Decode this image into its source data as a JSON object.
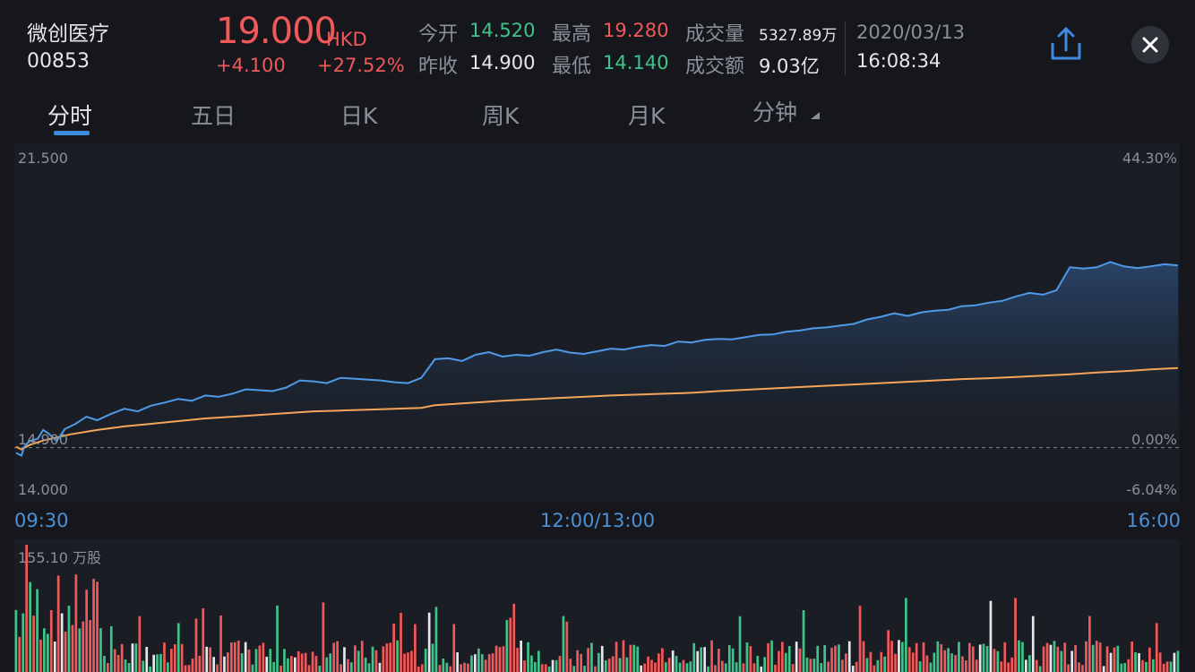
{
  "stock": {
    "name": "微创医疗",
    "code": "00853",
    "price": "19.000",
    "currency": "HKD",
    "change": "+4.100",
    "change_pct": "+27.52%"
  },
  "quote": {
    "open_label": "今开",
    "open": "14.520",
    "prev_close_label": "昨收",
    "prev_close": "14.900",
    "high_label": "最高",
    "high": "19.280",
    "low_label": "最低",
    "low": "14.140",
    "volume_label": "成交量",
    "volume": "5327.89万",
    "turnover_label": "成交额",
    "turnover": "9.03亿"
  },
  "datetime": {
    "date": "2020/03/13",
    "time": "16:08:34"
  },
  "icons": {
    "share": "share-icon",
    "close": "close-icon"
  },
  "tabs": [
    {
      "label": "分时",
      "active": true
    },
    {
      "label": "五日",
      "active": false
    },
    {
      "label": "日K",
      "active": false
    },
    {
      "label": "周K",
      "active": false
    },
    {
      "label": "月K",
      "active": false
    },
    {
      "label": "分钟",
      "active": false,
      "has_dropdown": true
    }
  ],
  "colors": {
    "up": "#f0585a",
    "down": "#3ec48a",
    "price_line": "#4e9ae8",
    "avg_line": "#f5a55a",
    "background": "#15171c"
  },
  "chart_axis": {
    "y_top": "21.500",
    "y_mid": "14.900",
    "y_bottom": "14.000",
    "pct_top": "44.30%",
    "pct_mid": "0.00%",
    "pct_bottom": "-6.04%",
    "time_start": "09:30",
    "time_mid": "12:00/13:00",
    "time_end": "16:00"
  },
  "volume_axis": {
    "max_label": "155.10 万股"
  },
  "chart_data": {
    "type": "line",
    "ylim": [
      14.0,
      21.5
    ],
    "baseline": 14.9,
    "x_range": [
      "09:30",
      "16:00"
    ],
    "series": [],
    "price_points": [
      [
        0,
        14.78
      ],
      [
        2,
        14.72
      ],
      [
        3,
        14.92
      ],
      [
        5,
        15.05
      ],
      [
        8,
        15.1
      ],
      [
        10,
        15.3
      ],
      [
        12,
        15.22
      ],
      [
        15,
        15.05
      ],
      [
        18,
        15.32
      ],
      [
        22,
        15.44
      ],
      [
        26,
        15.6
      ],
      [
        30,
        15.52
      ],
      [
        35,
        15.66
      ],
      [
        40,
        15.78
      ],
      [
        45,
        15.72
      ],
      [
        50,
        15.85
      ],
      [
        55,
        15.92
      ],
      [
        60,
        16.0
      ],
      [
        65,
        15.96
      ],
      [
        70,
        16.08
      ],
      [
        75,
        16.05
      ],
      [
        80,
        16.12
      ],
      [
        85,
        16.22
      ],
      [
        90,
        16.2
      ],
      [
        95,
        16.18
      ],
      [
        100,
        16.26
      ],
      [
        105,
        16.42
      ],
      [
        110,
        16.4
      ],
      [
        115,
        16.36
      ],
      [
        120,
        16.48
      ],
      [
        125,
        16.46
      ],
      [
        130,
        16.44
      ],
      [
        135,
        16.42
      ],
      [
        140,
        16.38
      ],
      [
        145,
        16.36
      ],
      [
        150,
        16.48
      ],
      [
        155,
        16.9
      ],
      [
        160,
        16.92
      ],
      [
        165,
        16.86
      ],
      [
        170,
        17.0
      ],
      [
        175,
        17.06
      ],
      [
        180,
        16.96
      ],
      [
        185,
        17.0
      ],
      [
        190,
        16.98
      ],
      [
        195,
        17.06
      ],
      [
        200,
        17.12
      ],
      [
        205,
        17.05
      ],
      [
        210,
        17.02
      ],
      [
        215,
        17.08
      ],
      [
        220,
        17.14
      ],
      [
        225,
        17.12
      ],
      [
        230,
        17.18
      ],
      [
        235,
        17.22
      ],
      [
        240,
        17.2
      ],
      [
        245,
        17.3
      ],
      [
        250,
        17.28
      ],
      [
        255,
        17.34
      ],
      [
        260,
        17.36
      ],
      [
        265,
        17.35
      ],
      [
        270,
        17.4
      ],
      [
        275,
        17.45
      ],
      [
        280,
        17.46
      ],
      [
        285,
        17.52
      ],
      [
        290,
        17.55
      ],
      [
        295,
        17.6
      ],
      [
        300,
        17.62
      ],
      [
        305,
        17.66
      ],
      [
        310,
        17.7
      ],
      [
        315,
        17.8
      ],
      [
        320,
        17.86
      ],
      [
        325,
        17.94
      ],
      [
        330,
        17.88
      ],
      [
        335,
        17.96
      ],
      [
        340,
        18.0
      ],
      [
        345,
        18.02
      ],
      [
        350,
        18.1
      ],
      [
        355,
        18.12
      ],
      [
        360,
        18.18
      ],
      [
        365,
        18.22
      ],
      [
        370,
        18.32
      ],
      [
        375,
        18.4
      ],
      [
        380,
        18.36
      ],
      [
        385,
        18.46
      ],
      [
        390,
        18.98
      ],
      [
        395,
        18.95
      ],
      [
        400,
        18.98
      ],
      [
        405,
        19.1
      ],
      [
        410,
        19.0
      ],
      [
        415,
        18.96
      ],
      [
        420,
        19.0
      ],
      [
        425,
        19.05
      ],
      [
        430,
        19.02
      ]
    ],
    "avg_points": [
      [
        0,
        14.92
      ],
      [
        2,
        14.86
      ],
      [
        5,
        14.96
      ],
      [
        10,
        15.06
      ],
      [
        20,
        15.2
      ],
      [
        30,
        15.3
      ],
      [
        40,
        15.38
      ],
      [
        50,
        15.44
      ],
      [
        60,
        15.5
      ],
      [
        70,
        15.56
      ],
      [
        80,
        15.6
      ],
      [
        90,
        15.64
      ],
      [
        100,
        15.68
      ],
      [
        110,
        15.72
      ],
      [
        120,
        15.74
      ],
      [
        130,
        15.76
      ],
      [
        140,
        15.78
      ],
      [
        150,
        15.8
      ],
      [
        155,
        15.86
      ],
      [
        160,
        15.88
      ],
      [
        170,
        15.92
      ],
      [
        180,
        15.96
      ],
      [
        190,
        15.99
      ],
      [
        200,
        16.02
      ],
      [
        210,
        16.05
      ],
      [
        220,
        16.08
      ],
      [
        230,
        16.1
      ],
      [
        240,
        16.12
      ],
      [
        250,
        16.14
      ],
      [
        260,
        16.18
      ],
      [
        270,
        16.21
      ],
      [
        280,
        16.24
      ],
      [
        290,
        16.27
      ],
      [
        300,
        16.3
      ],
      [
        310,
        16.33
      ],
      [
        320,
        16.36
      ],
      [
        330,
        16.39
      ],
      [
        340,
        16.42
      ],
      [
        350,
        16.45
      ],
      [
        360,
        16.47
      ],
      [
        370,
        16.5
      ],
      [
        380,
        16.53
      ],
      [
        390,
        16.56
      ],
      [
        400,
        16.6
      ],
      [
        410,
        16.63
      ],
      [
        420,
        16.67
      ],
      [
        430,
        16.7
      ]
    ],
    "volume_max": 155.1
  }
}
